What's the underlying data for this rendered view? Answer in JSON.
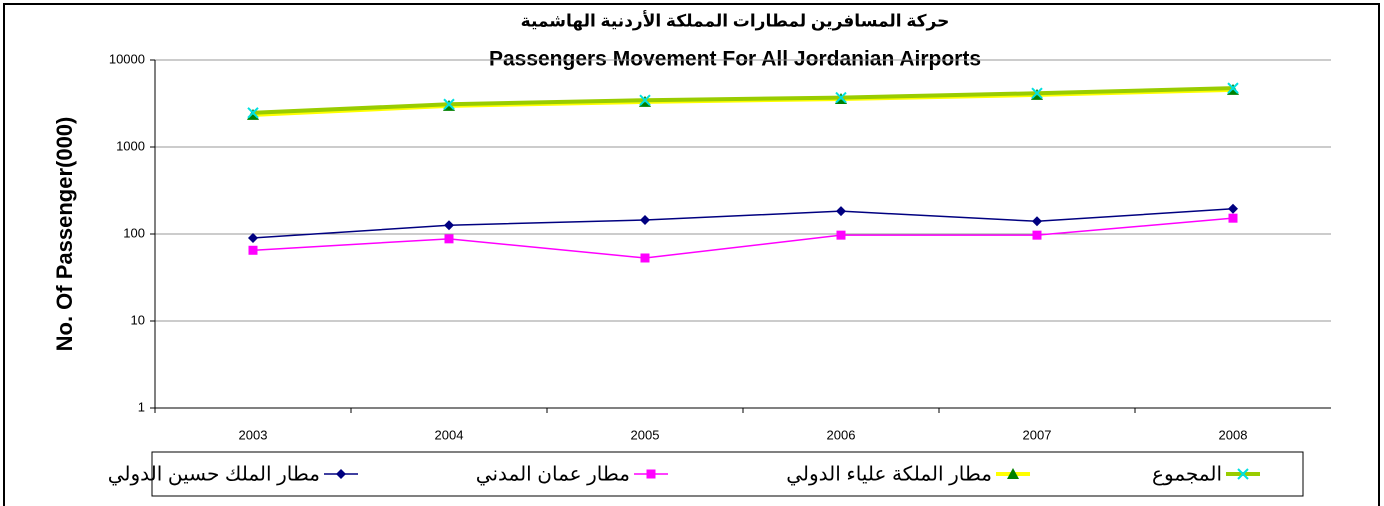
{
  "chart_data": {
    "type": "line",
    "title": "حركة المسافرين لمطارات المملكة الأردنية الهاشمية",
    "subtitle": "Passengers Movement For All Jordanian Airports",
    "y_label": "No. Of Passenger(000)",
    "categories": [
      "2003",
      "2004",
      "2005",
      "2006",
      "2007",
      "2008"
    ],
    "log_scale": true,
    "grid": true,
    "ylim": [
      1,
      10000
    ],
    "yticks": [
      1,
      10,
      100,
      1000,
      10000
    ],
    "legend": "bottom",
    "series": [
      {
        "name": "مطار الملك حسين الدولي",
        "color": "#000080",
        "marker": "diamond",
        "marker_color": "#000080",
        "values": [
          90,
          126,
          145,
          183,
          140,
          195
        ]
      },
      {
        "name": "مطار عمان المدني",
        "color": "#ff00ff",
        "marker": "square",
        "marker_color": "#ff00ff",
        "values": [
          65,
          88,
          53,
          97,
          97,
          152
        ]
      },
      {
        "name": "مطار الملكة علياء الدولي",
        "color": "#ffff00",
        "marker": "triangle",
        "marker_color": "#008000",
        "values": [
          2340,
          2970,
          3300,
          3560,
          3970,
          4540
        ]
      },
      {
        "name": "المجموع",
        "color": "#99cc00",
        "marker": "x",
        "marker_color": "#00e0e0",
        "values": [
          2470,
          3100,
          3450,
          3700,
          4150,
          4750
        ]
      }
    ]
  }
}
